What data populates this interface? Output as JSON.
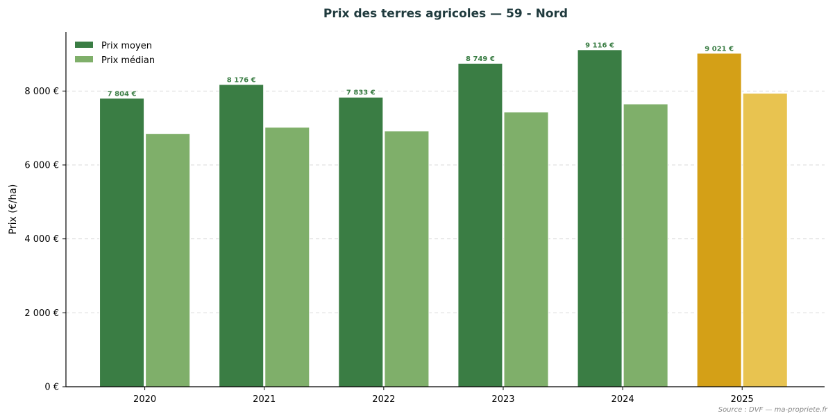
{
  "chart_data": {
    "type": "bar",
    "title": "Prix des terres agricoles — 59 - Nord",
    "xlabel": "",
    "ylabel": "Prix (€/ha)",
    "categories": [
      "2020",
      "2021",
      "2022",
      "2023",
      "2024",
      "2025"
    ],
    "series": [
      {
        "name": "Prix moyen",
        "values": [
          7804,
          8176,
          7833,
          8749,
          9116,
          9021
        ],
        "data_labels": [
          "7 804 €",
          "8 176 €",
          "7 833 €",
          "8 749 €",
          "9 116 €",
          "9 021 €"
        ],
        "color": "#3a7d44",
        "highlight_color": "#d4a017"
      },
      {
        "name": "Prix médian",
        "values": [
          6850,
          7020,
          6920,
          7430,
          7650,
          7940
        ],
        "color": "#7faf6a",
        "highlight_color": "#e8c350"
      }
    ],
    "highlight_category": "2025",
    "ylim": [
      0,
      9600
    ],
    "yticks": [
      0,
      2000,
      4000,
      6000,
      8000
    ],
    "ytick_labels": [
      "0 €",
      "2 000 €",
      "4 000 €",
      "6 000 €",
      "8 000 €"
    ],
    "grid": "horizontal dashed",
    "legend_position": "top-left",
    "source": "Source : DVF — ma-propriete.fr"
  }
}
